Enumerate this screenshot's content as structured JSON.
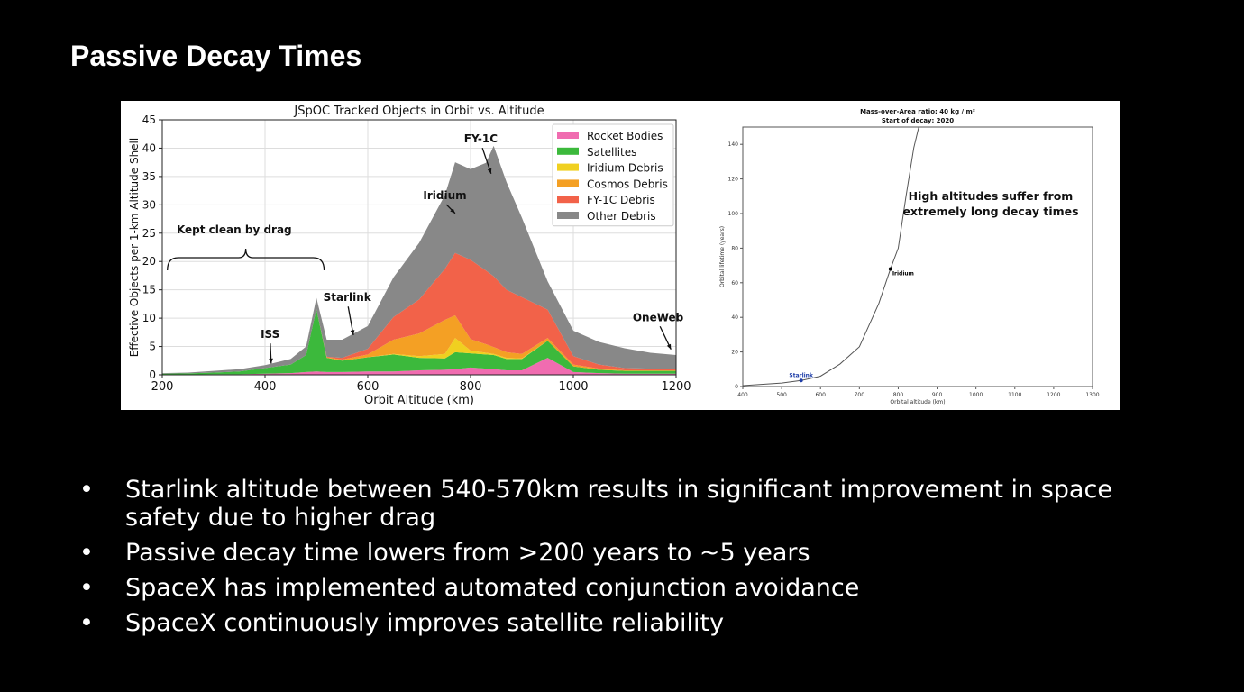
{
  "slide": {
    "title": "Passive Decay Times",
    "bullets": [
      "Starlink altitude between 540-570km results in significant improvement in space safety due to higher drag",
      "Passive decay time lowers from >200 years to ~5 years",
      "SpaceX has implemented automated conjunction avoidance",
      "SpaceX continuously improves satellite reliability"
    ],
    "bullet_symbol": "•"
  },
  "chart_data": [
    {
      "type": "area",
      "stacked": true,
      "title": "JSpOC Tracked Objects in Orbit vs. Altitude",
      "xlabel": "Orbit Altitude (km)",
      "ylabel": "Effective Objects per 1-km Altitude Shell",
      "xlim": [
        200,
        1200
      ],
      "ylim": [
        0,
        45
      ],
      "xticks": [
        200,
        400,
        600,
        800,
        1000,
        1200
      ],
      "yticks": [
        0,
        5,
        10,
        15,
        20,
        25,
        30,
        35,
        40,
        45
      ],
      "grid": true,
      "legend_position": "top-right",
      "x": [
        200,
        250,
        300,
        350,
        400,
        450,
        480,
        500,
        520,
        550,
        600,
        650,
        700,
        750,
        770,
        800,
        830,
        845,
        870,
        900,
        950,
        1000,
        1050,
        1100,
        1150,
        1200
      ],
      "series": [
        {
          "name": "Rocket Bodies",
          "color": "#f06cb0",
          "values": [
            0.05,
            0.05,
            0.1,
            0.1,
            0.2,
            0.3,
            0.5,
            0.6,
            0.5,
            0.5,
            0.6,
            0.6,
            0.8,
            0.9,
            1.0,
            1.3,
            1.1,
            1.0,
            0.8,
            0.8,
            3.0,
            0.5,
            0.3,
            0.2,
            0.2,
            0.2
          ]
        },
        {
          "name": "Satellites",
          "color": "#3cb93c",
          "values": [
            0.15,
            0.2,
            0.3,
            0.5,
            1.0,
            1.5,
            3.0,
            11.0,
            2.5,
            2.0,
            2.5,
            3.0,
            2.2,
            2.0,
            3.0,
            2.5,
            2.5,
            2.5,
            2.0,
            2.0,
            3.0,
            1.0,
            0.6,
            0.5,
            0.5,
            0.5
          ]
        },
        {
          "name": "Iridium Debris",
          "color": "#f0d020",
          "values": [
            0,
            0,
            0,
            0,
            0,
            0,
            0,
            0,
            0,
            0,
            0,
            0.1,
            0.3,
            0.8,
            2.5,
            0.5,
            0.3,
            0.2,
            0.2,
            0.1,
            0,
            0,
            0,
            0,
            0,
            0
          ]
        },
        {
          "name": "Cosmos Debris",
          "color": "#f4a024",
          "values": [
            0,
            0,
            0,
            0,
            0,
            0,
            0,
            0,
            0.1,
            0.2,
            0.5,
            2.5,
            4.0,
            6.0,
            4.0,
            2.0,
            1.5,
            1.2,
            1.0,
            0.8,
            0.5,
            0.3,
            0.2,
            0.1,
            0.1,
            0.1
          ]
        },
        {
          "name": "FY-1C Debris",
          "color": "#f26249",
          "values": [
            0,
            0,
            0,
            0,
            0,
            0,
            0,
            0,
            0.1,
            0.3,
            1.0,
            4.0,
            6.0,
            9.0,
            11.0,
            14.0,
            13.0,
            12.5,
            11.0,
            10.0,
            5.0,
            1.5,
            0.7,
            0.4,
            0.3,
            0.2
          ]
        },
        {
          "name": "Other Debris",
          "color": "#888888",
          "values": [
            0.1,
            0.15,
            0.3,
            0.4,
            0.5,
            1.0,
            1.5,
            2.0,
            3.0,
            3.2,
            4.0,
            7.0,
            10.0,
            13.0,
            16.0,
            16.0,
            19.0,
            23.0,
            19.0,
            14.0,
            5.0,
            4.5,
            4.0,
            3.5,
            2.8,
            2.5
          ]
        }
      ],
      "annotations": [
        {
          "text": "Kept clean by drag",
          "x": 340,
          "y": 25
        },
        {
          "text": "ISS",
          "x": 410,
          "y": 6.5
        },
        {
          "text": "Starlink",
          "x": 560,
          "y": 13
        },
        {
          "text": "Iridium",
          "x": 750,
          "y": 31
        },
        {
          "text": "FY-1C",
          "x": 820,
          "y": 41
        },
        {
          "text": "OneWeb",
          "x": 1165,
          "y": 9.5
        }
      ]
    },
    {
      "type": "line",
      "title": "Mass-over-Area ratio: 40 kg / m²",
      "subtitle": "Start of decay: 2020",
      "xlabel": "Orbital altitude (km)",
      "ylabel": "Orbital lifetime (years)",
      "xlim": [
        400,
        1300
      ],
      "ylim": [
        0,
        150
      ],
      "xticks": [
        400,
        500,
        600,
        700,
        800,
        900,
        1000,
        1100,
        1200,
        1300
      ],
      "yticks": [
        0,
        20,
        40,
        60,
        80,
        100,
        120,
        140
      ],
      "grid": false,
      "x": [
        400,
        500,
        550,
        600,
        650,
        700,
        750,
        780,
        800,
        820,
        840,
        855
      ],
      "y": [
        0.5,
        2,
        3.5,
        6,
        13,
        23,
        48,
        68,
        80,
        110,
        138,
        152
      ],
      "points": [
        {
          "label": "Starlink",
          "x": 550,
          "y": 3.5,
          "color": "#1f3ea8"
        },
        {
          "label": "Iridium",
          "x": 780,
          "y": 68,
          "color": "#000000"
        }
      ],
      "annotation": "High altitudes suffer from extremely long decay times"
    }
  ]
}
